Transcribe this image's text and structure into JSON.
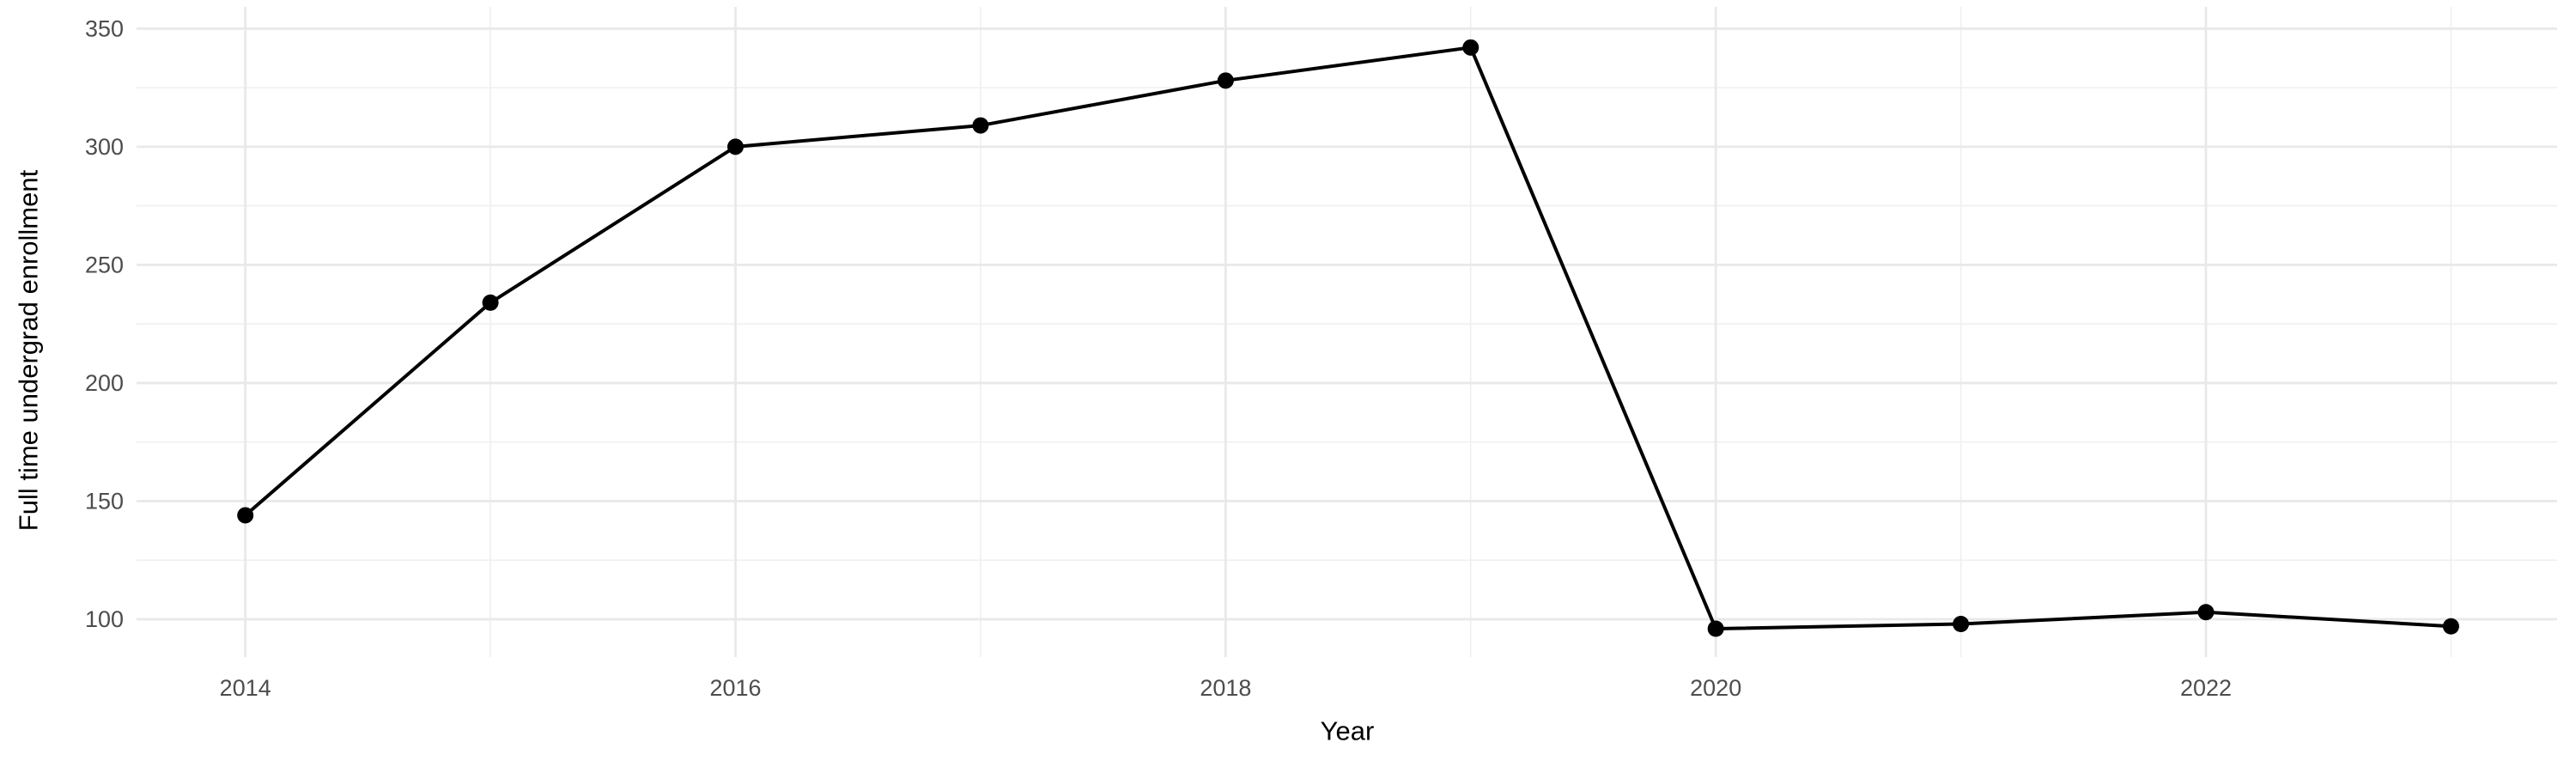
{
  "chart_data": {
    "type": "line",
    "title": "",
    "xlabel": "Year",
    "ylabel": "Full time undergrad enrollment",
    "x": [
      2014,
      2015,
      2016,
      2017,
      2018,
      2019,
      2020,
      2021,
      2022,
      2023
    ],
    "values": [
      144,
      234,
      300,
      309,
      328,
      342,
      96,
      98,
      103,
      97
    ],
    "x_ticks": [
      2014,
      2016,
      2018,
      2020,
      2022
    ],
    "y_ticks": [
      100,
      150,
      200,
      250,
      300,
      350
    ],
    "x_minor_gridlines": [
      2015,
      2017,
      2019,
      2021,
      2023
    ],
    "y_minor_gridlines": [
      125,
      175,
      225,
      275,
      325
    ],
    "xlim": [
      2013.556,
      2023.433
    ],
    "ylim": [
      84.0,
      359.2
    ],
    "grid": true,
    "legend_position": "none",
    "line_color": "#000000",
    "point_color": "#000000",
    "major_grid_color": "#e9e9e9",
    "minor_grid_color": "#f0f0f0",
    "tick_label_color": "#4d4d4d",
    "axis_title_color": "#000000",
    "background_color": "#ffffff"
  }
}
